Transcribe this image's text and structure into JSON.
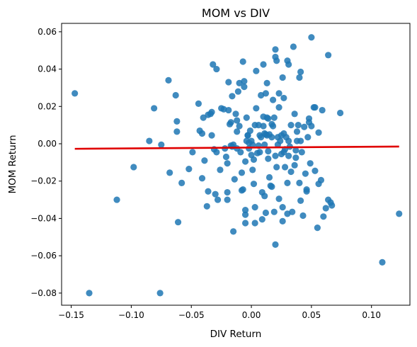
{
  "chart_data": {
    "type": "scatter",
    "title": "MOM vs DIV",
    "xlabel": "DIV Return",
    "ylabel": "MOM Return",
    "xlim": [
      -0.158,
      0.132
    ],
    "ylim": [
      -0.0865,
      0.0645
    ],
    "xticks": [
      -0.15,
      -0.1,
      -0.05,
      0.0,
      0.05,
      0.1
    ],
    "xtick_labels": [
      "−0.15",
      "−0.10",
      "−0.05",
      "0.00",
      "0.05",
      "0.10"
    ],
    "yticks": [
      -0.08,
      -0.06,
      -0.04,
      -0.02,
      0.0,
      0.02,
      0.04,
      0.06
    ],
    "ytick_labels": [
      "−0.08",
      "−0.06",
      "−0.04",
      "−0.02",
      "0.00",
      "0.02",
      "0.04",
      "0.06"
    ],
    "grid": false,
    "point_color": "#1f77b4",
    "line_color": "#e00000",
    "regression_line": {
      "x": [
        -0.147,
        0.123
      ],
      "y": [
        -0.0027,
        -0.0015
      ]
    },
    "points": [
      [
        -0.147,
        0.027
      ],
      [
        -0.135,
        -0.08
      ],
      [
        -0.112,
        -0.03
      ],
      [
        -0.098,
        -0.0125
      ],
      [
        -0.085,
        0.0015
      ],
      [
        -0.081,
        0.019
      ],
      [
        -0.076,
        -0.08
      ],
      [
        -0.075,
        -0.0005
      ],
      [
        -0.069,
        0.034
      ],
      [
        -0.068,
        -0.0155
      ],
      [
        -0.063,
        0.026
      ],
      [
        -0.062,
        0.012
      ],
      [
        -0.062,
        0.0065
      ],
      [
        -0.061,
        -0.042
      ],
      [
        -0.058,
        -0.021
      ],
      [
        -0.052,
        -0.0135
      ],
      [
        -0.049,
        -0.0045
      ],
      [
        -0.044,
        0.0215
      ],
      [
        -0.043,
        0.007
      ],
      [
        -0.041,
        0.0055
      ],
      [
        -0.041,
        -0.0185
      ],
      [
        -0.04,
        0.014
      ],
      [
        -0.039,
        -0.009
      ],
      [
        -0.037,
        -0.0335
      ],
      [
        -0.036,
        -0.0255
      ],
      [
        -0.036,
        0.0155
      ],
      [
        -0.034,
        0.016
      ],
      [
        -0.033,
        0.017
      ],
      [
        -0.033,
        0.0045
      ],
      [
        -0.032,
        0.0425
      ],
      [
        -0.031,
        -0.003
      ],
      [
        -0.03,
        -0.027
      ],
      [
        -0.029,
        -0.0045
      ],
      [
        -0.029,
        0.04
      ],
      [
        -0.028,
        -0.03
      ],
      [
        -0.026,
        -0.014
      ],
      [
        -0.025,
        0.019
      ],
      [
        -0.023,
        0.0185
      ],
      [
        -0.022,
        -0.0025
      ],
      [
        -0.021,
        -0.007
      ],
      [
        -0.02,
        -0.0105
      ],
      [
        -0.02,
        -0.026
      ],
      [
        -0.02,
        -0.03
      ],
      [
        -0.019,
        0.033
      ],
      [
        -0.019,
        0.018
      ],
      [
        -0.018,
        0.0105
      ],
      [
        -0.017,
        0.0115
      ],
      [
        -0.017,
        -0.001
      ],
      [
        -0.016,
        0.0255
      ],
      [
        -0.016,
        -0.0015
      ],
      [
        -0.015,
        -0.047
      ],
      [
        -0.015,
        -0.0005
      ],
      [
        -0.014,
        -0.019
      ],
      [
        -0.013,
        0.016
      ],
      [
        -0.012,
        0.0065
      ],
      [
        -0.012,
        0.0125
      ],
      [
        -0.012,
        -0.0025
      ],
      [
        -0.011,
        0.028
      ],
      [
        -0.01,
        0.0325
      ],
      [
        -0.01,
        0.0095
      ],
      [
        -0.009,
        -0.0045
      ],
      [
        -0.008,
        -0.0155
      ],
      [
        -0.008,
        -0.025
      ],
      [
        -0.007,
        -0.0245
      ],
      [
        -0.007,
        0.044
      ],
      [
        -0.006,
        0.0335
      ],
      [
        -0.006,
        0.0305
      ],
      [
        -0.005,
        -0.0095
      ],
      [
        -0.005,
        -0.0355
      ],
      [
        -0.005,
        -0.038
      ],
      [
        -0.005,
        -0.0425
      ],
      [
        -0.004,
        0.014
      ],
      [
        -0.004,
        0.0015
      ],
      [
        -0.003,
        0.0045
      ],
      [
        -0.003,
        0.0045
      ],
      [
        -0.002,
        -0.0025
      ],
      [
        -0.002,
        0.0005
      ],
      [
        -0.001,
        0.007
      ],
      [
        0.0,
        0.0015
      ],
      [
        0.0,
        -0.006
      ],
      [
        0.001,
        -0.014
      ],
      [
        0.001,
        -0.0005
      ],
      [
        0.002,
        -0.0085
      ],
      [
        0.002,
        -0.0215
      ],
      [
        0.003,
        -0.034
      ],
      [
        0.003,
        0.01
      ],
      [
        0.003,
        -0.0425
      ],
      [
        0.004,
        0.019
      ],
      [
        0.004,
        0.039
      ],
      [
        0.005,
        -0.005
      ],
      [
        0.006,
        -0.001
      ],
      [
        0.006,
        0.01
      ],
      [
        0.007,
        -0.0045
      ],
      [
        0.007,
        0.0045
      ],
      [
        0.008,
        0.026
      ],
      [
        0.008,
        0.0035
      ],
      [
        0.009,
        -0.026
      ],
      [
        0.009,
        -0.0405
      ],
      [
        0.01,
        0.0425
      ],
      [
        0.01,
        0.0095
      ],
      [
        0.01,
        0.0145
      ],
      [
        0.011,
        -0.0005
      ],
      [
        0.011,
        0.0055
      ],
      [
        0.011,
        -0.028
      ],
      [
        0.012,
        0.005
      ],
      [
        0.012,
        -0.037
      ],
      [
        0.012,
        0.027
      ],
      [
        0.013,
        0.0325
      ],
      [
        0.013,
        0.014
      ],
      [
        0.013,
        0.0045
      ],
      [
        0.014,
        0.0135
      ],
      [
        0.014,
        -0.008
      ],
      [
        0.014,
        -0.004
      ],
      [
        0.015,
        0.005
      ],
      [
        0.015,
        -0.018
      ],
      [
        0.016,
        -0.0225
      ],
      [
        0.017,
        0.0105
      ],
      [
        0.017,
        0.0035
      ],
      [
        0.017,
        -0.023
      ],
      [
        0.018,
        0.0095
      ],
      [
        0.018,
        0.0235
      ],
      [
        0.019,
        0.014
      ],
      [
        0.019,
        -0.0365
      ],
      [
        0.02,
        0.0465
      ],
      [
        0.02,
        0.0505
      ],
      [
        0.02,
        -0.0065
      ],
      [
        0.02,
        -0.054
      ],
      [
        0.021,
        -0.0125
      ],
      [
        0.021,
        0.0445
      ],
      [
        0.022,
        0.0035
      ],
      [
        0.022,
        -0.0005
      ],
      [
        0.023,
        0.027
      ],
      [
        0.023,
        0.0195
      ],
      [
        0.023,
        -0.0295
      ],
      [
        0.024,
        0.0015
      ],
      [
        0.025,
        0.0045
      ],
      [
        0.025,
        -0.0055
      ],
      [
        0.026,
        -0.034
      ],
      [
        0.026,
        0.0355
      ],
      [
        0.026,
        -0.0415
      ],
      [
        0.027,
        0.0245
      ],
      [
        0.027,
        -0.0045
      ],
      [
        0.027,
        0.0055
      ],
      [
        0.028,
        -0.0125
      ],
      [
        0.028,
        -0.003
      ],
      [
        0.029,
        0.0035
      ],
      [
        0.03,
        -0.021
      ],
      [
        0.03,
        -0.0375
      ],
      [
        0.03,
        0.0445
      ],
      [
        0.031,
        0.0425
      ],
      [
        0.031,
        0.0015
      ],
      [
        0.031,
        -0.0065
      ],
      [
        0.032,
        -0.0015
      ],
      [
        0.033,
        0.01
      ],
      [
        0.033,
        -0.015
      ],
      [
        0.034,
        -0.0365
      ],
      [
        0.035,
        0.052
      ],
      [
        0.036,
        -0.0115
      ],
      [
        0.036,
        0.016
      ],
      [
        0.037,
        -0.0035
      ],
      [
        0.037,
        -0.0075
      ],
      [
        0.038,
        0.0065
      ],
      [
        0.038,
        0.0015
      ],
      [
        0.039,
        0.01
      ],
      [
        0.04,
        -0.021
      ],
      [
        0.04,
        0.0355
      ],
      [
        0.041,
        -0.0305
      ],
      [
        0.041,
        0.0015
      ],
      [
        0.041,
        0.0385
      ],
      [
        0.042,
        -0.0045
      ],
      [
        0.043,
        -0.0385
      ],
      [
        0.044,
        0.009
      ],
      [
        0.045,
        -0.016
      ],
      [
        0.046,
        -0.0255
      ],
      [
        0.046,
        -0.0245
      ],
      [
        0.047,
        0.0035
      ],
      [
        0.048,
        0.0135
      ],
      [
        0.048,
        0.0115
      ],
      [
        0.049,
        -0.0105
      ],
      [
        0.05,
        0.057
      ],
      [
        0.05,
        0.0095
      ],
      [
        0.052,
        0.0195
      ],
      [
        0.053,
        -0.0145
      ],
      [
        0.053,
        0.0195
      ],
      [
        0.055,
        -0.045
      ],
      [
        0.056,
        0.006
      ],
      [
        0.056,
        -0.0215
      ],
      [
        0.058,
        -0.0195
      ],
      [
        0.059,
        0.018
      ],
      [
        0.06,
        -0.039
      ],
      [
        0.062,
        -0.0345
      ],
      [
        0.064,
        0.0475
      ],
      [
        0.064,
        -0.03
      ],
      [
        0.066,
        -0.0315
      ],
      [
        0.067,
        -0.033
      ],
      [
        0.074,
        0.0165
      ],
      [
        0.109,
        -0.0635
      ],
      [
        0.123,
        -0.0375
      ]
    ]
  }
}
